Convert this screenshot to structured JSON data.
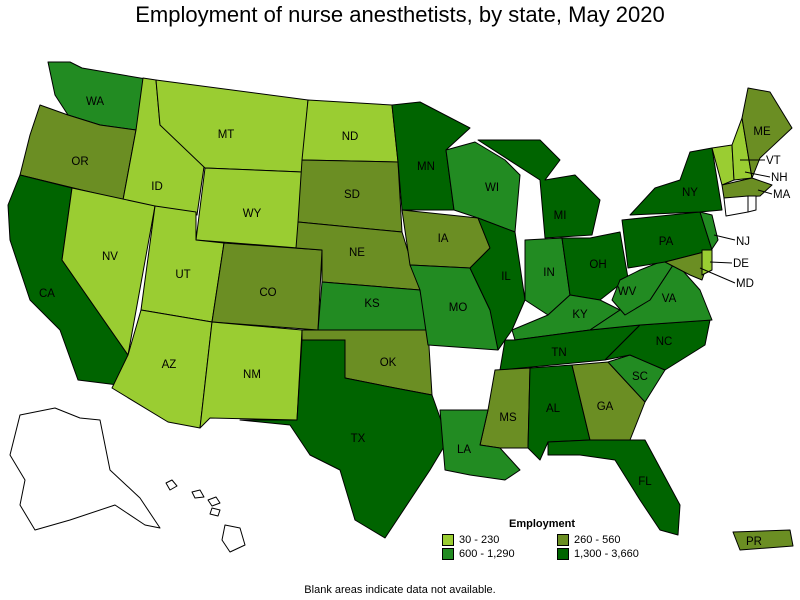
{
  "title": "Employment of nurse anesthetists, by state, May 2020",
  "legend": {
    "title": "Employment",
    "items": [
      {
        "label": "30 - 230",
        "color": "#9acd32"
      },
      {
        "label": "260 - 560",
        "color": "#6b8e23"
      },
      {
        "label": "600 - 1,290",
        "color": "#228b22"
      },
      {
        "label": "1,300 - 3,660",
        "color": "#006400"
      }
    ]
  },
  "footnote": "Blank areas indicate data not available.",
  "states": {
    "WA": "WA",
    "OR": "OR",
    "CA": "CA",
    "ID": "ID",
    "NV": "NV",
    "MT": "MT",
    "WY": "WY",
    "UT": "UT",
    "AZ": "AZ",
    "CO": "CO",
    "NM": "NM",
    "ND": "ND",
    "SD": "SD",
    "NE": "NE",
    "KS": "KS",
    "OK": "OK",
    "TX": "TX",
    "MN": "MN",
    "IA": "IA",
    "MO": "MO",
    "WI": "WI",
    "IL": "IL",
    "MS": "MS",
    "LA": "LA",
    "MI": "MI",
    "IN": "IN",
    "KY": "KY",
    "TN": "TN",
    "AL": "AL",
    "GA": "GA",
    "FL": "FL",
    "SC": "SC",
    "NC": "NC",
    "VA": "VA",
    "WV": "WV",
    "OH": "OH",
    "PA": "PA",
    "NY": "NY",
    "ME": "ME",
    "VT": "VT",
    "NH": "NH",
    "MA": "MA",
    "NJ": "NJ",
    "DE": "DE",
    "MD": "MD",
    "PR": "PR"
  }
}
